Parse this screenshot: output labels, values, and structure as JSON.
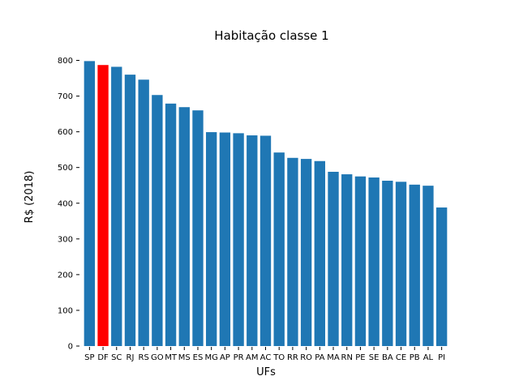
{
  "chart_data": {
    "type": "bar",
    "title": "Habitação classe 1",
    "xlabel": "UFs",
    "ylabel": "R$ (2018)",
    "ylim": [
      0,
      800
    ],
    "yticks": [
      0,
      100,
      200,
      300,
      400,
      500,
      600,
      700,
      800
    ],
    "grid": false,
    "categories": [
      "SP",
      "DF",
      "SC",
      "RJ",
      "RS",
      "GO",
      "MT",
      "MS",
      "ES",
      "MG",
      "AP",
      "PR",
      "AM",
      "AC",
      "TO",
      "RR",
      "RO",
      "PA",
      "MA",
      "RN",
      "PE",
      "SE",
      "BA",
      "CE",
      "PB",
      "AL",
      "PI"
    ],
    "values": [
      798,
      787,
      782,
      760,
      746,
      703,
      679,
      669,
      660,
      599,
      598,
      596,
      590,
      589,
      542,
      527,
      524,
      518,
      488,
      481,
      475,
      472,
      463,
      460,
      452,
      449,
      388
    ],
    "default_color": "#1f77b4",
    "highlight": {
      "category": "DF",
      "color": "#ff0000"
    }
  }
}
